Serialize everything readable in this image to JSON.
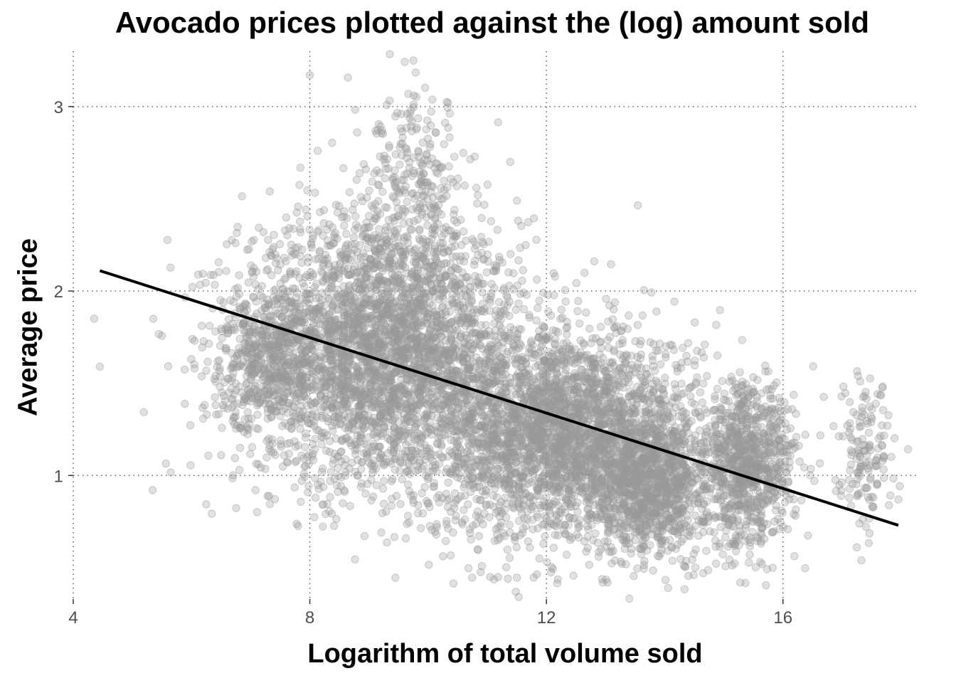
{
  "chart_data": {
    "type": "scatter",
    "title": "Avocado prices plotted against the (log) amount sold",
    "xlabel": "Logarithm of total volume sold",
    "ylabel": "Average price",
    "xlim": [
      4,
      18.3
    ],
    "ylim": [
      0.33,
      3.3
    ],
    "x_ticks": [
      4,
      8,
      12,
      16
    ],
    "y_ticks": [
      1,
      2,
      3
    ],
    "grid": true,
    "grid_style": "dotted",
    "point_color": "#999999",
    "point_opacity": 0.3,
    "fit_line": {
      "type": "linear",
      "x": [
        4.45,
        17.95
      ],
      "y": [
        2.11,
        0.73
      ],
      "color": "#000000"
    },
    "clusters": [
      {
        "x_center": 9.2,
        "y_center": 1.68,
        "x_spread": 1.2,
        "y_spread": 0.36,
        "count": 3500
      },
      {
        "x_center": 12.3,
        "y_center": 1.22,
        "x_spread": 1.1,
        "y_spread": 0.28,
        "count": 3000
      },
      {
        "x_center": 13.8,
        "y_center": 0.95,
        "x_spread": 0.45,
        "y_spread": 0.2,
        "count": 900
      },
      {
        "x_center": 15.4,
        "y_center": 1.05,
        "x_spread": 0.4,
        "y_spread": 0.22,
        "count": 900
      },
      {
        "x_center": 9.8,
        "y_center": 2.55,
        "x_spread": 0.45,
        "y_spread": 0.25,
        "count": 250
      },
      {
        "x_center": 7.3,
        "y_center": 1.65,
        "x_spread": 0.4,
        "y_spread": 0.2,
        "count": 400
      },
      {
        "x_center": 17.4,
        "y_center": 1.1,
        "x_spread": 0.25,
        "y_spread": 0.2,
        "count": 150
      }
    ],
    "outliers": [
      {
        "x": 4.45,
        "y": 1.59
      },
      {
        "x": 6.05,
        "y": 1.73
      },
      {
        "x": 6.05,
        "y": 1.58
      },
      {
        "x": 6.5,
        "y": 1.11
      },
      {
        "x": 9.75,
        "y": 3.25
      },
      {
        "x": 8.0,
        "y": 3.17
      },
      {
        "x": 11.05,
        "y": 0.45
      },
      {
        "x": 14.65,
        "y": 0.47
      },
      {
        "x": 17.95,
        "y": 0.87
      }
    ]
  }
}
